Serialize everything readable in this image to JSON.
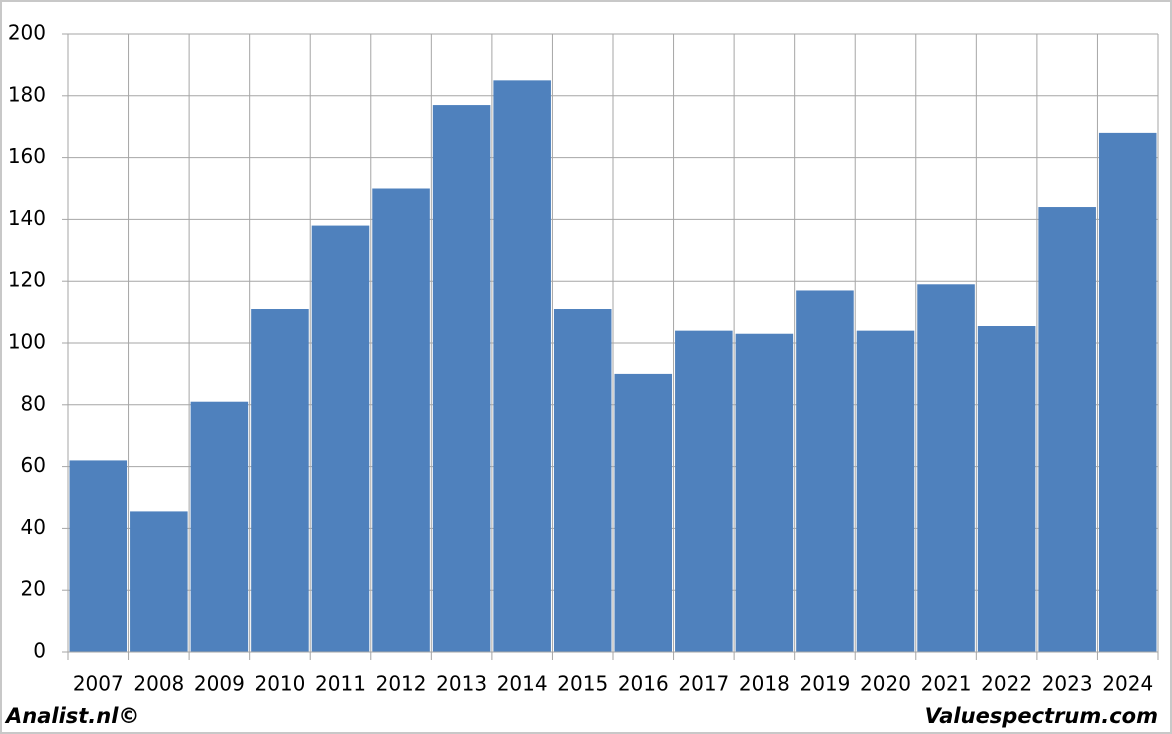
{
  "chart_data": {
    "type": "bar",
    "categories": [
      "2007",
      "2008",
      "2009",
      "2010",
      "2011",
      "2012",
      "2013",
      "2014",
      "2015",
      "2016",
      "2017",
      "2018",
      "2019",
      "2020",
      "2021",
      "2022",
      "2023",
      "2024"
    ],
    "values": [
      62,
      45.5,
      81,
      111,
      138,
      150,
      177,
      185,
      111,
      90,
      104,
      103,
      117,
      104,
      119,
      105.5,
      144,
      168
    ],
    "color": "#4f81bd",
    "ylim": [
      0,
      200
    ],
    "yticks": [
      0,
      20,
      40,
      60,
      80,
      100,
      120,
      140,
      160,
      180,
      200
    ],
    "grid": true,
    "annotations": [
      "Analist.nl©",
      "Valuespectrum.com"
    ]
  }
}
